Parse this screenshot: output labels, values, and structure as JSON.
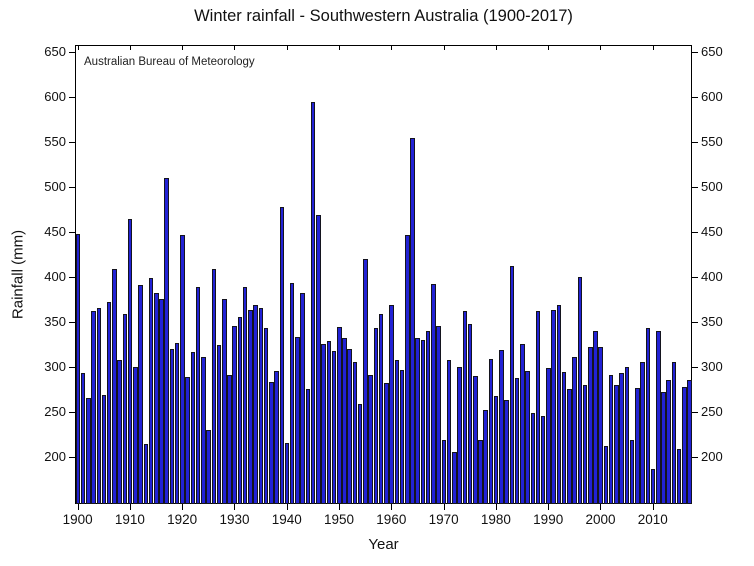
{
  "chart_data": {
    "type": "bar",
    "title": "Winter rainfall - Southwestern Australia (1900-2017)",
    "annotation": "Australian Bureau of Meteorology",
    "xlabel": "Year",
    "ylabel": "Rainfall (mm)",
    "year_start": 1900,
    "year_end": 2017,
    "values": [
      447,
      293,
      265,
      362,
      365,
      269,
      372,
      408,
      307,
      359,
      464,
      300,
      391,
      214,
      398,
      382,
      375,
      510,
      320,
      326,
      446,
      289,
      316,
      389,
      311,
      230,
      408,
      324,
      375,
      291,
      345,
      355,
      389,
      363,
      369,
      365,
      343,
      283,
      295,
      477,
      215,
      393,
      333,
      382,
      275,
      594,
      468,
      325,
      328,
      317,
      344,
      332,
      320,
      305,
      258,
      420,
      291,
      343,
      358,
      282,
      368,
      307,
      296,
      446,
      554,
      332,
      330,
      340,
      392,
      345,
      219,
      307,
      205,
      300,
      362,
      347,
      290,
      218,
      252,
      309,
      267,
      319,
      263,
      412,
      287,
      325,
      295,
      248,
      362,
      245,
      298,
      363,
      369,
      294,
      275,
      311,
      400,
      280,
      322,
      340,
      322,
      212,
      291,
      280,
      293,
      300,
      219,
      276,
      305,
      343,
      186,
      340,
      272,
      285,
      305,
      209,
      277,
      285
    ],
    "yticks": [
      200,
      250,
      300,
      350,
      400,
      450,
      500,
      550,
      600,
      650
    ],
    "xticks": [
      1900,
      1910,
      1920,
      1930,
      1940,
      1950,
      1960,
      1970,
      1980,
      1990,
      2000,
      2010
    ],
    "ylim": [
      147.4,
      657.4
    ],
    "grid": false,
    "legend": null,
    "bar_color": "#2222d5",
    "bar_edge_color": "#14141e",
    "axis_color": "#000000"
  }
}
